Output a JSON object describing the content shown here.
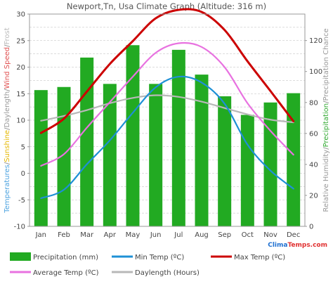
{
  "chart_data": {
    "type": "bar",
    "title": "Newport,Tn, Usa Climate Graph (Altitude: 316 m)",
    "categories": [
      "Jan",
      "Feb",
      "Mar",
      "Apr",
      "May",
      "Jun",
      "Jul",
      "Aug",
      "Sep",
      "Oct",
      "Nov",
      "Dec"
    ],
    "left_axis": {
      "ylim": [
        -10,
        30
      ],
      "ticks": [
        -10,
        -5,
        0,
        5,
        10,
        15,
        20,
        25,
        30
      ],
      "label_parts": [
        {
          "text": "Temperatures",
          "color": "#4da3e0"
        },
        {
          "text": "/",
          "color": "#888888"
        },
        {
          "text": "Sunshine",
          "color": "#e5b800"
        },
        {
          "text": "/",
          "color": "#888888"
        },
        {
          "text": "Daylength",
          "color": "#9a9a9a"
        },
        {
          "text": "/",
          "color": "#888888"
        },
        {
          "text": "Wind Speed",
          "color": "#e05050"
        },
        {
          "text": "/",
          "color": "#888888"
        },
        {
          "text": "Frost",
          "color": "#bbbbbb"
        }
      ]
    },
    "right_axis": {
      "ylim": [
        0,
        137.1
      ],
      "ticks": [
        0,
        20,
        40,
        60,
        80,
        100,
        120
      ],
      "label_parts": [
        {
          "text": "Relative Humidity",
          "color": "#999999"
        },
        {
          "text": "/",
          "color": "#888888"
        },
        {
          "text": "Precipitation",
          "color": "#33aa33"
        },
        {
          "text": "/",
          "color": "#888888"
        },
        {
          "text": "Precipitation Chance",
          "color": "#999999"
        }
      ]
    },
    "series": [
      {
        "name": "Precipitation (mm)",
        "kind": "bar",
        "axis": "right",
        "color": "#22aa22",
        "values": [
          88,
          90,
          109,
          92,
          117,
          92,
          114,
          98,
          84,
          72,
          80,
          86
        ]
      },
      {
        "name": "Min Temp (ºC)",
        "kind": "line",
        "axis": "left",
        "color": "#1e90d6",
        "values": [
          -4.7,
          -3.1,
          1.7,
          6.2,
          11.4,
          16.2,
          18.2,
          17.1,
          13.1,
          5.4,
          0.5,
          -2.9
        ]
      },
      {
        "name": "Max Temp (ºC)",
        "kind": "line",
        "axis": "left",
        "color": "#cc0000",
        "values": [
          7.6,
          10.3,
          15.4,
          20.6,
          24.9,
          29.2,
          30.8,
          30.4,
          27.0,
          21.1,
          15.5,
          9.8
        ]
      },
      {
        "name": "Average Temp (ºC)",
        "kind": "line",
        "axis": "left",
        "color": "#e872e0",
        "values": [
          1.4,
          3.6,
          8.6,
          13.4,
          18.2,
          22.7,
          24.5,
          23.8,
          20.0,
          13.2,
          8.0,
          3.5
        ]
      },
      {
        "name": "Daylength (Hours)",
        "kind": "line",
        "axis": "left",
        "color": "#b8b8b8",
        "values": [
          9.9,
          10.8,
          11.9,
          13.2,
          14.2,
          14.7,
          14.4,
          13.5,
          12.3,
          11.1,
          10.1,
          9.6
        ]
      }
    ],
    "grid": true,
    "legend_position": "bottom",
    "watermark": "ClimaTemps.com",
    "colors": {
      "axis_text": "#444444",
      "grid": "#bbbbbb",
      "frame": "#999999",
      "title": "#555555",
      "watermark_clima": "#1d6fd0",
      "watermark_temps": "#e03030"
    }
  }
}
